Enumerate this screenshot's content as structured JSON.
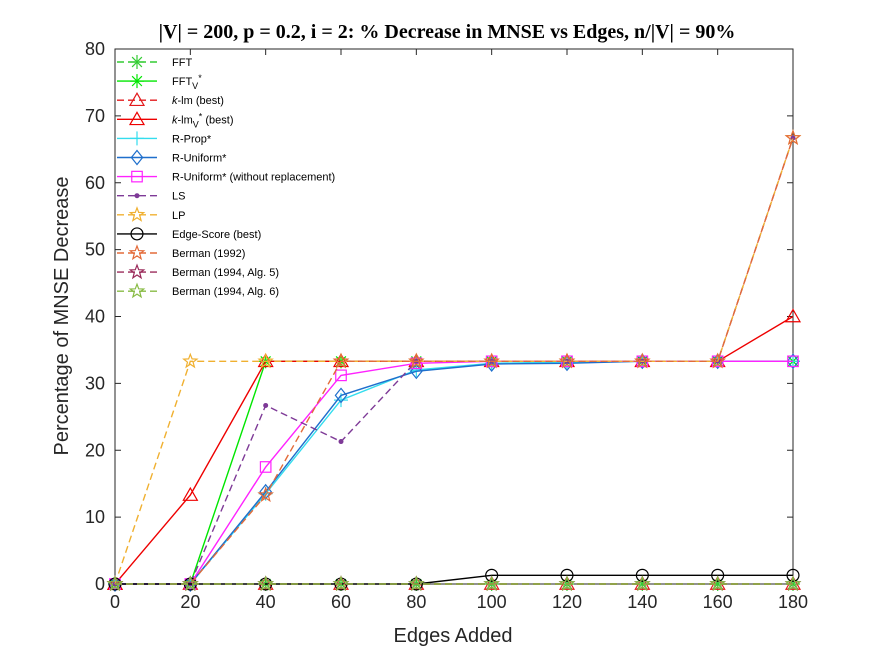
{
  "chart_data": {
    "type": "line",
    "title": "|V| = 200, p = 0.2, i = 2: % Decrease in MNSE vs Edges, n/|V| = 90%",
    "xlabel": "Edges Added",
    "ylabel": "Percentage of MNSE Decrease",
    "xlim": [
      0,
      180
    ],
    "ylim": [
      0,
      80
    ],
    "xticks": [
      0,
      20,
      40,
      60,
      80,
      100,
      120,
      140,
      160,
      180
    ],
    "yticks": [
      0,
      10,
      20,
      30,
      40,
      50,
      60,
      70,
      80
    ],
    "grid": false,
    "legend_position": "top-left",
    "x": [
      0,
      20,
      40,
      60,
      80,
      100,
      120,
      140,
      160,
      180
    ],
    "series": [
      {
        "name": "FFT",
        "color": "#33cc33",
        "dash": true,
        "marker": "asterisk",
        "values": [
          0,
          0,
          0,
          0,
          0,
          0,
          0,
          0,
          0,
          0
        ]
      },
      {
        "name": "FFTV*",
        "name_main": "FFT",
        "name_sub": "V",
        "name_sup": "*",
        "color": "#00e600",
        "dash": false,
        "marker": "asterisk",
        "values": [
          0,
          0,
          33.3,
          33.3,
          33.3,
          33.3,
          33.3,
          33.3,
          33.3,
          33.3
        ]
      },
      {
        "name": "k-lm (best)",
        "name_italic": "k",
        "name_rest": "-lm (best)",
        "color": "#e31a1c",
        "dash": true,
        "marker": "triangle",
        "values": [
          0,
          0,
          0,
          0,
          0,
          0,
          0,
          0,
          0,
          0
        ]
      },
      {
        "name": "k-lmV* (best)",
        "name_italic": "k",
        "name_rest": "-lm",
        "name_sub": "V",
        "name_sup": "*",
        "name_tail": " (best)",
        "color": "#ee0000",
        "dash": false,
        "marker": "triangle",
        "values": [
          0,
          13.3,
          33.3,
          33.3,
          33.3,
          33.3,
          33.3,
          33.3,
          33.3,
          40
        ]
      },
      {
        "name": "R-Prop*",
        "color": "#33ddee",
        "dash": false,
        "marker": "plus",
        "values": [
          0,
          0,
          13.5,
          27.5,
          32.0,
          33.0,
          33.2,
          33.3,
          33.3,
          33.3
        ]
      },
      {
        "name": "R-Uniform*",
        "color": "#1f6fcc",
        "dash": false,
        "marker": "diamond",
        "values": [
          0,
          0,
          13.8,
          28.2,
          31.8,
          32.9,
          33.0,
          33.3,
          33.3,
          33.3
        ]
      },
      {
        "name": "R-Uniform* (without replacement)",
        "color": "#ff22ff",
        "dash": false,
        "marker": "square",
        "values": [
          0,
          0,
          17.5,
          31.2,
          33.0,
          33.3,
          33.3,
          33.3,
          33.3,
          33.3
        ]
      },
      {
        "name": "LS",
        "color": "#7e3a97",
        "dash": true,
        "marker": "dot",
        "values": [
          0,
          0,
          26.7,
          21.3,
          33.3,
          33.3,
          33.3,
          33.3,
          33.3,
          66.7
        ]
      },
      {
        "name": "LP",
        "color": "#f0b030",
        "dash": true,
        "marker": "star",
        "values": [
          0,
          33.3,
          33.3,
          33.3,
          33.3,
          33.3,
          33.3,
          33.3,
          33.3,
          66.7
        ]
      },
      {
        "name": "Edge-Score (best)",
        "color": "#000000",
        "dash": false,
        "marker": "circle",
        "values": [
          0,
          0,
          0,
          0,
          0,
          1.3,
          1.3,
          1.3,
          1.3,
          1.3
        ]
      },
      {
        "name": "Berman (1992)",
        "color": "#e36b3a",
        "dash": true,
        "marker": "star",
        "values": [
          0,
          0,
          13.3,
          33.3,
          33.3,
          33.3,
          33.3,
          33.3,
          33.3,
          66.7
        ]
      },
      {
        "name": "Berman (1994, Alg. 5)",
        "color": "#9a2a5a",
        "dash": true,
        "marker": "star",
        "values": [
          0,
          0,
          0,
          0,
          0,
          0,
          0,
          0,
          0,
          0
        ]
      },
      {
        "name": "Berman (1994, Alg. 6)",
        "color": "#88bb44",
        "dash": true,
        "marker": "star",
        "values": [
          0,
          0,
          0,
          0,
          0,
          0,
          0,
          0,
          0,
          0
        ]
      }
    ]
  }
}
